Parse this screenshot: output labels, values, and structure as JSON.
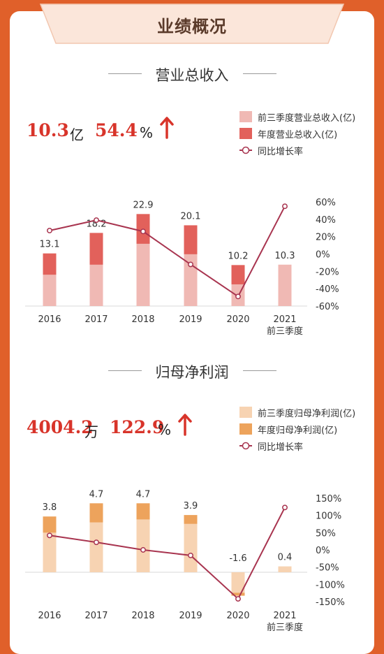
{
  "header": {
    "title": "业绩概况"
  },
  "revenue": {
    "section_title": "营业总收入",
    "value": "10.3",
    "value_unit": "亿",
    "growth": "54.4",
    "growth_unit": "%",
    "legend": [
      "前三季度营业总收入(亿)",
      "年度营业总收入(亿)",
      "同比增长率"
    ],
    "colors": {
      "q3": "#f0b9b4",
      "annual": "#e2615b",
      "line": "#a8344f"
    }
  },
  "profit": {
    "section_title": "归母净利润",
    "value": "4004.2",
    "value_unit": "万",
    "growth": "122.9",
    "growth_unit": "%",
    "legend": [
      "前三季度归母净利润(亿)",
      "年度归母净利润(亿)",
      "同比增长率"
    ],
    "colors": {
      "q3": "#f7d3b2",
      "annual": "#eda35c",
      "line": "#a8344f"
    }
  },
  "chart_data": [
    {
      "type": "bar",
      "categories": [
        "2016",
        "2017",
        "2018",
        "2019",
        "2020",
        "2021\n前三季度"
      ],
      "series": [
        {
          "name": "前三季度营业总收入(亿)",
          "values": [
            7.8,
            10.3,
            15.5,
            12.9,
            5.4,
            10.3
          ]
        },
        {
          "name": "年度营业总收入(亿)",
          "values": [
            13.1,
            18.2,
            22.9,
            20.1,
            10.2,
            null
          ]
        },
        {
          "name": "同比增长率",
          "values": [
            27,
            39,
            26,
            -12,
            -49,
            55
          ]
        }
      ],
      "data_labels": [
        "13.1",
        "18.2",
        "22.9",
        "20.1",
        "10.2",
        "10.3"
      ],
      "right_axis_ticks": [
        "60%",
        "40%",
        "20%",
        "0%",
        "-20%",
        "-40%",
        "-60%"
      ],
      "ylim_right": [
        -60,
        60
      ]
    },
    {
      "type": "bar",
      "categories": [
        "2016",
        "2017",
        "2018",
        "2019",
        "2020",
        "2021\n前三季度"
      ],
      "series": [
        {
          "name": "前三季度归母净利润(亿)",
          "values": [
            2.7,
            3.4,
            3.6,
            3.3,
            -1.4,
            0.4
          ]
        },
        {
          "name": "年度归母净利润(亿)",
          "values": [
            3.8,
            4.7,
            4.7,
            3.9,
            -1.6,
            null
          ]
        },
        {
          "name": "同比增长率",
          "values": [
            42,
            22,
            0,
            -16,
            -142,
            123
          ]
        }
      ],
      "data_labels": [
        "3.8",
        "4.7",
        "4.7",
        "3.9",
        "-1.6",
        "0.4"
      ],
      "right_axis_ticks": [
        "150%",
        "100%",
        "50%",
        "0%",
        "-50%",
        "-100%",
        "-150%"
      ],
      "ylim_right": [
        -150,
        150
      ]
    }
  ]
}
